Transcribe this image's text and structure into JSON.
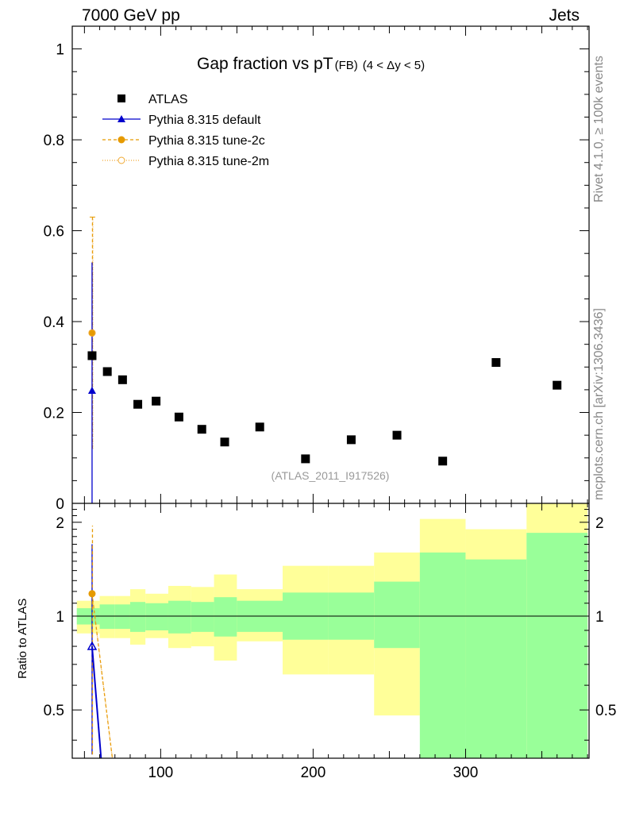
{
  "header": {
    "left": "7000 GeV pp",
    "right": "Jets"
  },
  "side_labels": {
    "rivet": "Rivet 4.1.0, ≥ 100k events",
    "mcplots": "mcplots.cern.ch [arXiv:1306.3436]"
  },
  "chart_data": {
    "type": "scatter",
    "title": "Gap fraction vs pT",
    "title_sub": "(FB)",
    "title_range": "(4 < Δy < 5)",
    "analysis_id": "(ATLAS_2011_I917526)",
    "xlim": [
      42,
      381
    ],
    "ylim": [
      0,
      1.05
    ],
    "ratio_ylim": [
      0.35,
      2.3
    ],
    "xticks": [
      100,
      200,
      300
    ],
    "yticks": [
      0,
      0.2,
      0.4,
      0.6,
      0.8,
      1
    ],
    "ytick_labels": [
      "0",
      "0.2",
      "0.4",
      "0.6",
      "0.8",
      "1"
    ],
    "ratio_yticks": [
      0.5,
      1,
      2
    ],
    "ratio_ytick_labels": [
      "0.5",
      "1",
      "2"
    ],
    "ratio_ylabel": "Ratio to ATLAS",
    "colors": {
      "data": "#000000",
      "default": "#0000cc",
      "tune2c": "#e69a00",
      "tune2m": "#f0a830",
      "band_inner": "#99ff99",
      "band_outer": "#ffff99"
    },
    "legend": [
      {
        "name": "ATLAS",
        "marker": "square"
      },
      {
        "name": "Pythia 8.315 default",
        "marker": "triangle"
      },
      {
        "name": "Pythia 8.315 tune-2c",
        "marker": "circle"
      },
      {
        "name": "Pythia 8.315 tune-2m",
        "marker": "open-circle"
      }
    ],
    "data": {
      "name": "ATLAS",
      "x": [
        55,
        65,
        75,
        85,
        97,
        112,
        127,
        142,
        165,
        195,
        225,
        255,
        285,
        320,
        360
      ],
      "y": [
        0.325,
        0.29,
        0.272,
        0.218,
        0.225,
        0.19,
        0.163,
        0.135,
        0.168,
        0.098,
        0.14,
        0.15,
        0.093,
        0.31,
        0.26
      ]
    },
    "bins": [
      45,
      60,
      70,
      80,
      90,
      105,
      120,
      135,
      150,
      180,
      210,
      240,
      270,
      300,
      340,
      380
    ],
    "band_inner": {
      "lo": [
        0.94,
        0.91,
        0.91,
        0.89,
        0.9,
        0.88,
        0.89,
        0.86,
        0.89,
        0.84,
        0.84,
        0.79,
        0.35,
        0.35,
        0.35
      ],
      "hi": [
        1.06,
        1.09,
        1.09,
        1.11,
        1.1,
        1.12,
        1.11,
        1.15,
        1.12,
        1.19,
        1.19,
        1.29,
        1.6,
        1.52,
        1.85
      ]
    },
    "band_outer": {
      "lo": [
        0.88,
        0.85,
        0.85,
        0.81,
        0.85,
        0.79,
        0.8,
        0.72,
        0.83,
        0.65,
        0.65,
        0.48,
        0.45,
        0.59,
        0.35
      ],
      "hi": [
        1.12,
        1.16,
        1.16,
        1.22,
        1.18,
        1.25,
        1.24,
        1.36,
        1.22,
        1.45,
        1.45,
        1.6,
        2.05,
        1.9,
        2.5
      ]
    },
    "series": [
      {
        "name": "Pythia 8.315 default",
        "x": [
          55
        ],
        "y": [
          0.248
        ],
        "err_lo": [
          0.248
        ],
        "err_hi": [
          0.282
        ],
        "ratio_line": {
          "x": [
            55,
            62
          ],
          "y": [
            0.8,
            0.3
          ]
        }
      },
      {
        "name": "Pythia 8.315 tune-2c",
        "x": [
          55
        ],
        "y": [
          0.375
        ],
        "err_lo": [
          0.255
        ],
        "err_hi": [
          0.255
        ],
        "ratio_line": {
          "x": [
            55,
            70
          ],
          "y": [
            1.18,
            0.3
          ]
        }
      },
      {
        "name": "Pythia 8.315 tune-2m",
        "x": [
          55
        ],
        "y": [
          0.375
        ],
        "err_lo": [
          0.255
        ],
        "err_hi": [
          0.255
        ],
        "ratio_line": {
          "x": [
            55,
            70
          ],
          "y": [
            1.18,
            0.3
          ]
        }
      }
    ]
  }
}
